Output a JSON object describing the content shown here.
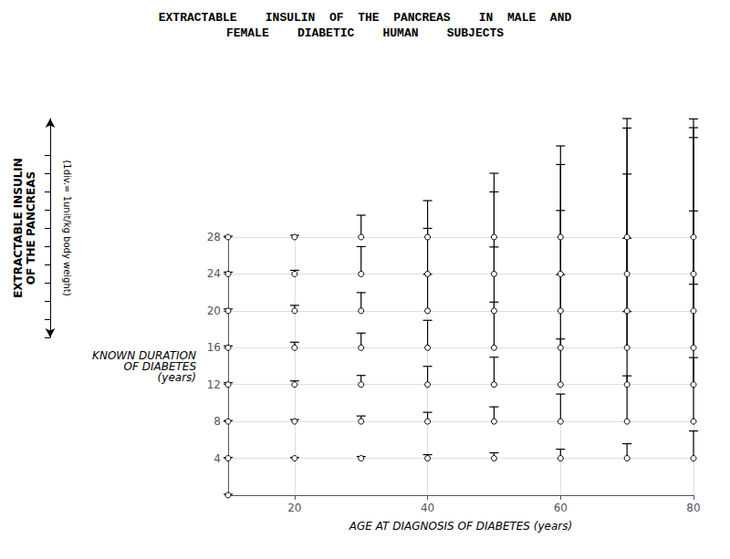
{
  "chart_data": {
    "type": "stem",
    "title": "EXTRACTABLE    INSULIN  OF  THE  PANCREAS    IN  MALE  AND",
    "subtitle": "FEMALE    DIABETIC    HUMAN    SUBJECTS",
    "x_label": "AGE AT DIAGNOSIS OF DIABETES (years)",
    "y_label": "KNOWN DURATION\nOF DIABETES\n(years)",
    "z_label": "EXTRACTABLE INSULIN\nOF THE PANCREAS",
    "annotations": [
      "(1div.= 1unit/kg body weight)"
    ],
    "x": [
      10,
      10,
      20,
      30,
      40,
      50,
      60,
      70,
      80,
      10,
      20,
      30,
      40,
      50,
      60,
      70,
      80,
      10,
      20,
      30,
      40,
      50,
      60,
      70,
      80,
      10,
      20,
      30,
      40,
      50,
      60,
      70,
      80,
      10,
      20,
      30,
      40,
      50,
      60,
      70,
      80,
      10,
      20,
      30,
      40,
      50,
      60,
      70,
      80,
      10,
      20,
      30,
      40,
      50,
      60,
      70,
      80
    ],
    "y": [
      0,
      4,
      4,
      4,
      4,
      4,
      4,
      4,
      4,
      8,
      8,
      8,
      8,
      8,
      8,
      8,
      8,
      12,
      12,
      12,
      12,
      12,
      12,
      12,
      12,
      16,
      16,
      16,
      16,
      16,
      16,
      16,
      16,
      20,
      20,
      20,
      20,
      20,
      20,
      20,
      20,
      24,
      24,
      24,
      24,
      24,
      24,
      24,
      24,
      28,
      28,
      28,
      28,
      28,
      28,
      28,
      28
    ],
    "values": [
      0.05,
      0.05,
      0.05,
      0.1,
      0.2,
      0.3,
      0.5,
      0.8,
      1.5,
      0.05,
      0.1,
      0.3,
      0.5,
      0.8,
      1.5,
      2.5,
      3.5,
      0.1,
      0.2,
      0.5,
      1.0,
      1.5,
      2.5,
      4.0,
      5.5,
      0.1,
      0.3,
      0.8,
      1.5,
      2.5,
      4.0,
      6.0,
      7.5,
      0.1,
      0.3,
      1.0,
      2.0,
      3.5,
      5.5,
      7.5,
      9.5,
      0.1,
      0.2,
      1.5,
      2.5,
      4.5,
      6.0,
      8.0,
      8.5,
      0.05,
      0.1,
      1.2,
      2.0,
      3.5,
      5.0,
      6.5,
      6.0
    ],
    "color": "#000000",
    "xlim": [
      10,
      80
    ],
    "xticks": [
      20,
      40,
      60,
      80
    ],
    "ylim": [
      0,
      28
    ],
    "yticks": [
      4,
      8,
      12,
      16,
      20,
      24,
      28
    ],
    "zlim": [
      0,
      12
    ],
    "zticks": [
      0,
      1,
      2,
      3,
      4,
      5,
      6,
      7,
      8,
      9,
      10
    ],
    "grid": true
  }
}
